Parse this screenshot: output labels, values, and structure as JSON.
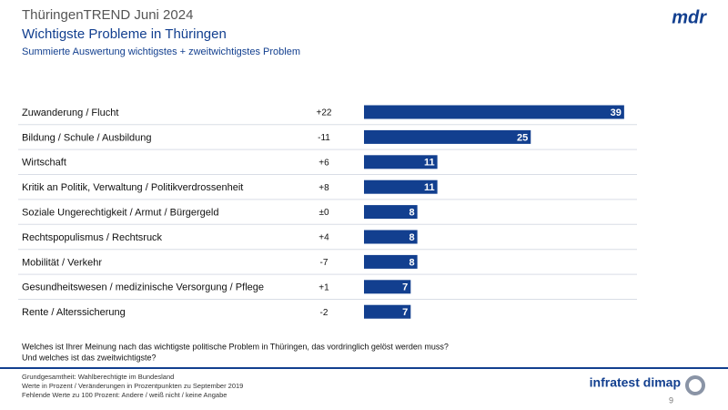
{
  "chart_data": {
    "type": "bar",
    "supertitle": "ThüringenTREND Juni 2024",
    "title": "Wichtigste Probleme in Thüringen",
    "subtitle": "Summierte  Auswertung  wichtigstes  +  zweitwichtigstes  Problem",
    "categories": [
      "Zuwanderung / Flucht",
      "Bildung / Schule / Ausbildung",
      "Wirtschaft",
      "Kritik an Politik, Verwaltung / Politikverdrossenheit",
      "Soziale Ungerechtigkeit / Armut / Bürgergeld",
      "Rechtspopulismus / Rechtsruck",
      "Mobilität / Verkehr",
      "Gesundheitswesen / medizinische Versorgung / Pflege",
      "Rente / Alterssicherung"
    ],
    "values": [
      39,
      25,
      11,
      11,
      8,
      8,
      8,
      7,
      7
    ],
    "changes": [
      "+22",
      "-11",
      "+6",
      "+8",
      "±0",
      "+4",
      "-7",
      "+1",
      "-2"
    ],
    "color": "#123f8f",
    "question": [
      "Welches ist Ihrer Meinung nach das wichtigste politische Problem in Thüringen,  das vordringlich gelöst werden muss?",
      "Und welches ist das zweitwichtigste?"
    ],
    "notes": [
      "Grundgesamtheit:  Wahlberechtigte  im Bundesland",
      "Werte  in Prozent  / Veränderungen  in Prozentpunkten  zu September  2019",
      "Fehlende  Werte zu 100 Prozent:  Andere  / weiß nicht / keine Angabe"
    ]
  },
  "page": {
    "logo_left": "mdr",
    "logo_right": "infratest dimap",
    "number": "9"
  }
}
